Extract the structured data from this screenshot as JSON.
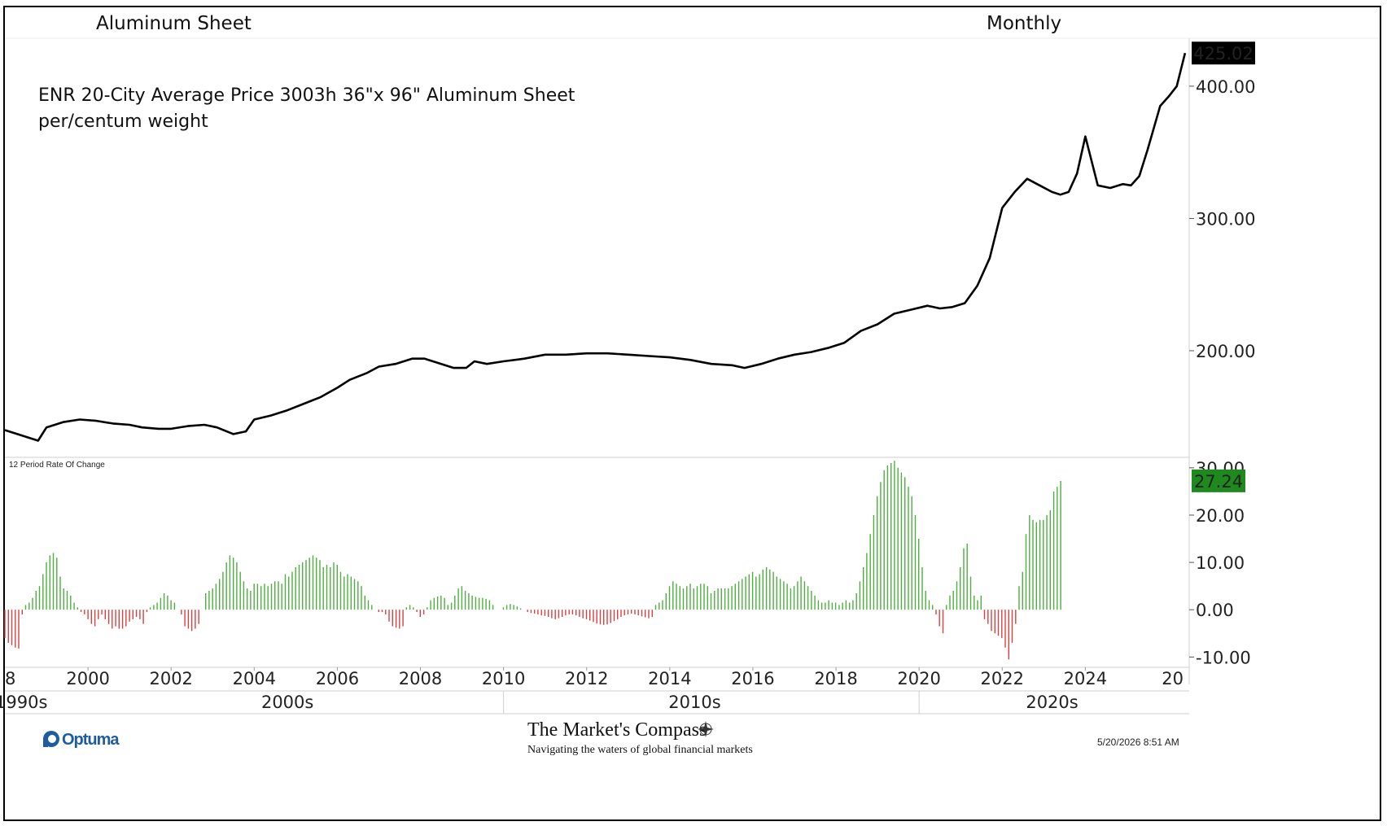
{
  "header": {
    "title": "Aluminum Sheet",
    "period": "Monthly"
  },
  "chart_data": [
    {
      "type": "line",
      "title": "Aluminum Sheet",
      "annotation_line1": "ENR 20-City Average Price 3003h 36\"x 96\" Aluminum Sheet",
      "annotation_line2": "per/centum weight",
      "last_value_label": "425.02",
      "ylim": [
        120,
        435
      ],
      "yticks": [
        "200.00",
        "300.00",
        "400.00"
      ],
      "ytick_values": [
        200,
        300,
        400
      ],
      "x": [
        1998.0,
        1998.3,
        1998.6,
        1998.8,
        1999.0,
        1999.4,
        1999.8,
        2000.2,
        2000.6,
        2001.0,
        2001.3,
        2001.7,
        2002.0,
        2002.4,
        2002.8,
        2003.1,
        2003.5,
        2003.8,
        2004.0,
        2004.4,
        2004.8,
        2005.2,
        2005.6,
        2006.0,
        2006.3,
        2006.7,
        2007.0,
        2007.4,
        2007.8,
        2008.1,
        2008.5,
        2008.8,
        2009.1,
        2009.3,
        2009.6,
        2010.0,
        2010.5,
        2011.0,
        2011.5,
        2012.0,
        2012.5,
        2013.0,
        2013.5,
        2014.0,
        2014.5,
        2015.0,
        2015.5,
        2015.8,
        2016.2,
        2016.6,
        2017.0,
        2017.4,
        2017.8,
        2018.2,
        2018.6,
        2019.0,
        2019.4,
        2019.8,
        2020.2,
        2020.5,
        2020.8,
        2021.1,
        2021.4,
        2021.7,
        2022.0,
        2022.3,
        2022.6,
        2022.9,
        2023.2,
        2023.4,
        2023.6,
        2023.8,
        2024.0,
        2024.3,
        2024.6,
        2024.9,
        2025.1,
        2025.3,
        2025.5,
        2025.8,
        2026.0,
        2026.2,
        2026.4
      ],
      "values": [
        140,
        137,
        134,
        132,
        142,
        146,
        148,
        147,
        145,
        144,
        142,
        141,
        141,
        143,
        144,
        142,
        137,
        139,
        148,
        151,
        155,
        160,
        165,
        172,
        178,
        183,
        188,
        190,
        194,
        194,
        190,
        187,
        187,
        192,
        190,
        192,
        194,
        197,
        197,
        198,
        198,
        197,
        196,
        195,
        193,
        190,
        189,
        187,
        190,
        194,
        197,
        199,
        202,
        206,
        215,
        220,
        228,
        231,
        234,
        232,
        233,
        236,
        249,
        270,
        308,
        320,
        330,
        325,
        320,
        318,
        320,
        334,
        362,
        325,
        323,
        326,
        325,
        332,
        352,
        385,
        392,
        400,
        425.02
      ]
    },
    {
      "type": "bar",
      "title": "12 Period Rate Of Change",
      "last_value_label": "27.24",
      "ylim": [
        -12,
        31
      ],
      "yticks": [
        "-10.00",
        "0.00",
        "10.00",
        "20.00",
        "30.00"
      ],
      "ytick_values": [
        -10,
        0,
        10,
        20,
        30
      ],
      "x_start": 1998.0,
      "x_step": 0.0833,
      "values": [
        -6,
        -7,
        -7.5,
        -8,
        -8.2,
        -1,
        1,
        1.5,
        2.5,
        4,
        5,
        7.5,
        10,
        11.5,
        12,
        11,
        7,
        4.5,
        4,
        3,
        1.5,
        0.5,
        -0.5,
        -1,
        -2,
        -3,
        -3.5,
        -2,
        -1,
        -2,
        -3,
        -4,
        -3.5,
        -4,
        -4,
        -3.5,
        -2.5,
        -2,
        -1.5,
        -2,
        -3,
        -0.5,
        0.5,
        1,
        1.5,
        2.5,
        3.5,
        3,
        2,
        1.5,
        0,
        -1,
        -3.5,
        -4,
        -4.5,
        -4,
        -3,
        0,
        3.5,
        4,
        4.5,
        5.5,
        6.5,
        8,
        10,
        11.5,
        11,
        10,
        8,
        6,
        4.5,
        4,
        5.5,
        5.5,
        5,
        5.5,
        5,
        5.5,
        6,
        6,
        5.5,
        7.5,
        7,
        8,
        9,
        9.5,
        10,
        10.5,
        11,
        11.5,
        11,
        10.5,
        9,
        9.5,
        9,
        10,
        9.5,
        8,
        7,
        7.5,
        7,
        6.5,
        6,
        5,
        3,
        2,
        1,
        0,
        -0.5,
        -0.5,
        -1,
        -2.5,
        -3.5,
        -3.8,
        -4,
        -3.5,
        0.5,
        1,
        0.5,
        -0.5,
        -1.5,
        -1,
        0.5,
        2,
        2.5,
        2.8,
        3,
        2.5,
        1,
        1.5,
        3,
        4.5,
        5,
        4,
        3.5,
        3,
        2.7,
        2.5,
        2.5,
        2.3,
        2,
        1,
        0,
        0,
        0.5,
        1,
        1.2,
        1,
        0.7,
        0.3,
        0,
        -0.5,
        -0.7,
        -0.8,
        -1,
        -1.2,
        -1.3,
        -1.5,
        -1.8,
        -2,
        -1.8,
        -1.5,
        -1.2,
        -1,
        -1,
        -1.2,
        -1.5,
        -1.8,
        -2,
        -2.3,
        -2.6,
        -2.9,
        -3.1,
        -3.2,
        -3.1,
        -2.8,
        -2.4,
        -2,
        -1.5,
        -1.2,
        -1,
        -0.8,
        -1,
        -1.2,
        -1.4,
        -1.6,
        -1.8,
        -1.5,
        1,
        1.5,
        2,
        3.5,
        5,
        6,
        5.5,
        5,
        4.5,
        5,
        5.5,
        4.5,
        5,
        5.5,
        5.5,
        5,
        3.5,
        4,
        4.5,
        4.5,
        4.5,
        4.5,
        5,
        5.5,
        6,
        6.5,
        7,
        7.5,
        8,
        7,
        7.5,
        8.5,
        9,
        8.5,
        8,
        7,
        6.5,
        6,
        5.5,
        4.5,
        5,
        6,
        7,
        6,
        5,
        4,
        3,
        2,
        1.5,
        1.5,
        2,
        1.5,
        1.5,
        1,
        1.5,
        2,
        1.5,
        2,
        3.5,
        6,
        9,
        12,
        16,
        20,
        24,
        27,
        29.5,
        30.5,
        31,
        31.5,
        30,
        29,
        28,
        26,
        24,
        20,
        15,
        9,
        4,
        2,
        1,
        -1,
        -3.5,
        -5,
        1,
        3,
        4,
        6,
        9,
        13,
        14,
        7,
        3,
        2,
        3,
        -2,
        -3,
        -4.5,
        -5,
        -5.5,
        -6,
        -8,
        -10.5,
        -7,
        -3,
        5,
        8,
        16,
        20,
        19,
        18.5,
        19,
        19,
        20,
        21,
        25,
        26,
        27.24
      ]
    }
  ],
  "x_axis": {
    "year_labels": [
      "8",
      "2000",
      "2002",
      "2004",
      "2006",
      "2008",
      "2010",
      "2012",
      "2014",
      "2016",
      "2018",
      "2020",
      "2022",
      "2024",
      "20"
    ],
    "decade_labels": [
      "1990s",
      "2000s",
      "2010s",
      "2020s"
    ]
  },
  "footer": {
    "brand": "Optuma",
    "publisher_title": "The Market's Compass",
    "publisher_tagline": "Navigating the waters of global financial markets",
    "timestamp": "5/20/2026 8:51 AM"
  },
  "colors": {
    "line": "#000000",
    "bar_positive": "#4caf3f",
    "bar_negative": "#d84040",
    "last_value_main_bg": "#000000",
    "last_value_roc_bg": "#1e8a1e",
    "brand_blue": "#1f5c9e"
  }
}
